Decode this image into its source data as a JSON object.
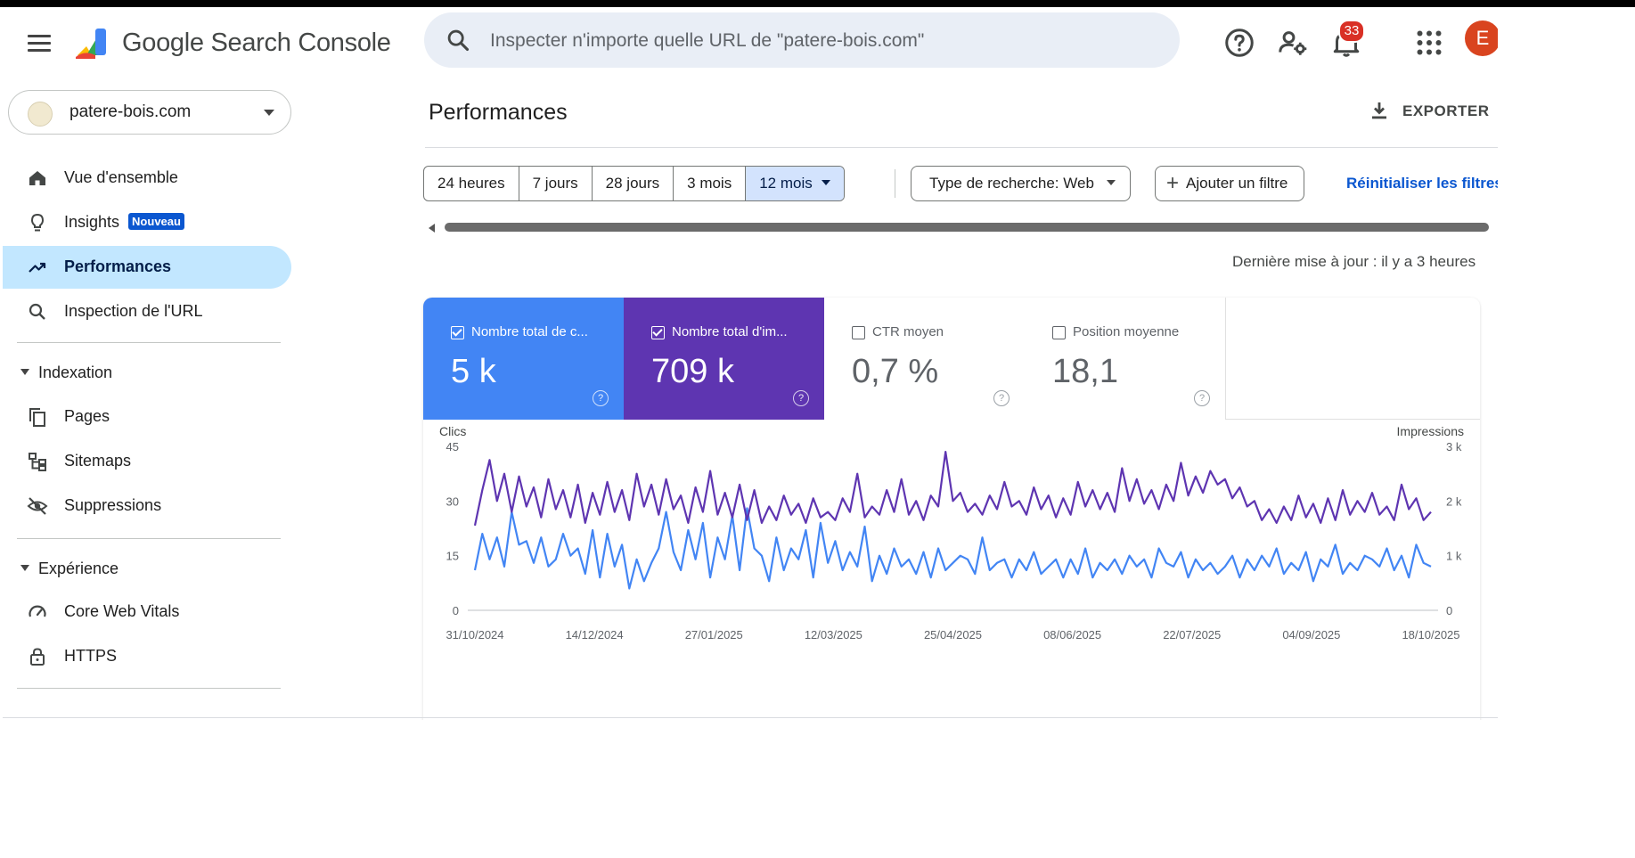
{
  "header": {
    "brand": "Google Search Console",
    "search_placeholder": "Inspecter n'importe quelle URL de \"patere-bois.com\"",
    "notifications_count": "33",
    "avatar_letter": "E"
  },
  "sidebar": {
    "property": "patere-bois.com",
    "nav": [
      {
        "label": "Vue d'ensemble",
        "icon": "home-icon"
      },
      {
        "label": "Insights",
        "icon": "lightbulb-icon",
        "badge": "Nouveau"
      },
      {
        "label": "Performances",
        "icon": "trending-up-icon",
        "active": true
      },
      {
        "label": "Inspection de l'URL",
        "icon": "search-icon"
      }
    ],
    "sections": [
      {
        "title": "Indexation",
        "items": [
          {
            "label": "Pages",
            "icon": "pages-icon"
          },
          {
            "label": "Sitemaps",
            "icon": "sitemap-icon"
          },
          {
            "label": "Suppressions",
            "icon": "eye-off-icon"
          }
        ]
      },
      {
        "title": "Expérience",
        "items": [
          {
            "label": "Core Web Vitals",
            "icon": "gauge-icon"
          },
          {
            "label": "HTTPS",
            "icon": "lock-icon"
          }
        ]
      }
    ]
  },
  "main": {
    "title": "Performances",
    "export_label": "EXPORTER",
    "ranges": [
      "24 heures",
      "7 jours",
      "28 jours",
      "3 mois",
      "12 mois"
    ],
    "selected_range": "12 mois",
    "search_type_label": "Type de recherche: Web",
    "add_filter_label": "Ajouter un filtre",
    "reset_label": "Réinitialiser les filtres",
    "last_update": "Dernière mise à jour : il y a 3 heures",
    "metrics": [
      {
        "label": "Nombre total de c...",
        "value": "5 k",
        "checked": true,
        "color": "#4285f4"
      },
      {
        "label": "Nombre total d'im...",
        "value": "709 k",
        "checked": true,
        "color": "#5e35b1"
      },
      {
        "label": "CTR moyen",
        "value": "0,7 %",
        "checked": false
      },
      {
        "label": "Position moyenne",
        "value": "18,1",
        "checked": false
      }
    ]
  },
  "chart_data": {
    "type": "line",
    "y_left_label": "Clics",
    "y_right_label": "Impressions",
    "y_left_ticks": [
      "45",
      "30",
      "15",
      "0"
    ],
    "y_right_ticks": [
      "3 k",
      "2 k",
      "1 k",
      "0"
    ],
    "y_left_range": [
      0,
      45
    ],
    "y_right_range": [
      0,
      3000
    ],
    "x_ticks": [
      "31/10/2024",
      "14/12/2024",
      "27/01/2025",
      "12/03/2025",
      "25/04/2025",
      "08/06/2025",
      "22/07/2025",
      "04/09/2025",
      "18/10/2025"
    ],
    "series": [
      {
        "name": "Nombre total de clics",
        "axis": "left",
        "color": "#4285f4",
        "values": [
          11,
          21,
          14,
          20,
          12,
          27,
          18,
          19,
          13,
          20,
          12,
          14,
          21,
          15,
          17,
          10,
          22,
          9,
          21,
          12,
          18,
          6,
          14,
          8,
          13,
          17,
          27,
          16,
          11,
          22,
          14,
          24,
          9,
          20,
          14,
          26,
          11,
          28,
          17,
          15,
          8,
          20,
          11,
          17,
          14,
          22,
          9,
          24,
          13,
          19,
          11,
          16,
          12,
          23,
          8,
          15,
          10,
          17,
          12,
          14,
          10,
          16,
          9,
          17,
          11,
          13,
          15,
          14,
          10,
          20,
          11,
          13,
          14,
          9,
          14,
          11,
          16,
          10,
          12,
          14,
          9,
          14,
          10,
          17,
          9,
          13,
          11,
          14,
          10,
          15,
          12,
          14,
          9,
          17,
          13,
          12,
          16,
          9,
          14,
          11,
          13,
          10,
          12,
          15,
          9,
          14,
          11,
          15,
          12,
          17,
          10,
          13,
          11,
          16,
          8,
          14,
          12,
          18,
          10,
          13,
          11,
          15,
          14,
          12,
          17,
          11,
          15,
          9,
          18,
          13,
          12
        ]
      },
      {
        "name": "Nombre total d'impressions",
        "axis": "right",
        "color": "#5e35b1",
        "values": [
          1550,
          2200,
          2750,
          2000,
          2500,
          1800,
          2450,
          1900,
          2250,
          1700,
          2400,
          1850,
          2200,
          1700,
          2300,
          1600,
          2150,
          1750,
          2350,
          1800,
          2200,
          1650,
          2500,
          1900,
          2300,
          1750,
          2400,
          1850,
          2100,
          1600,
          2250,
          1800,
          2550,
          1750,
          2150,
          1700,
          2300,
          1650,
          2200,
          1600,
          1900,
          1650,
          2100,
          1750,
          1950,
          1600,
          2050,
          1700,
          1800,
          1650,
          2050,
          1800,
          2500,
          1700,
          1900,
          1750,
          2200,
          1800,
          2400,
          1750,
          2000,
          1650,
          2100,
          1900,
          2900,
          2000,
          2150,
          1800,
          1950,
          1750,
          2100,
          1850,
          2350,
          1900,
          2000,
          1750,
          2250,
          1850,
          2100,
          1700,
          2050,
          1750,
          2350,
          1900,
          2200,
          1850,
          2150,
          1800,
          2600,
          2000,
          2400,
          1950,
          2200,
          1850,
          2300,
          2000,
          2700,
          2100,
          2450,
          2150,
          2550,
          2300,
          2400,
          2050,
          2250,
          1900,
          2000,
          1650,
          1850,
          1600,
          1900,
          1650,
          2100,
          1700,
          1950,
          1600,
          2050,
          1650,
          2200,
          1750,
          2000,
          1800,
          2150,
          1750,
          1900,
          1650,
          2300,
          1850,
          2050,
          1650,
          1800
        ]
      }
    ],
    "grid": false
  }
}
